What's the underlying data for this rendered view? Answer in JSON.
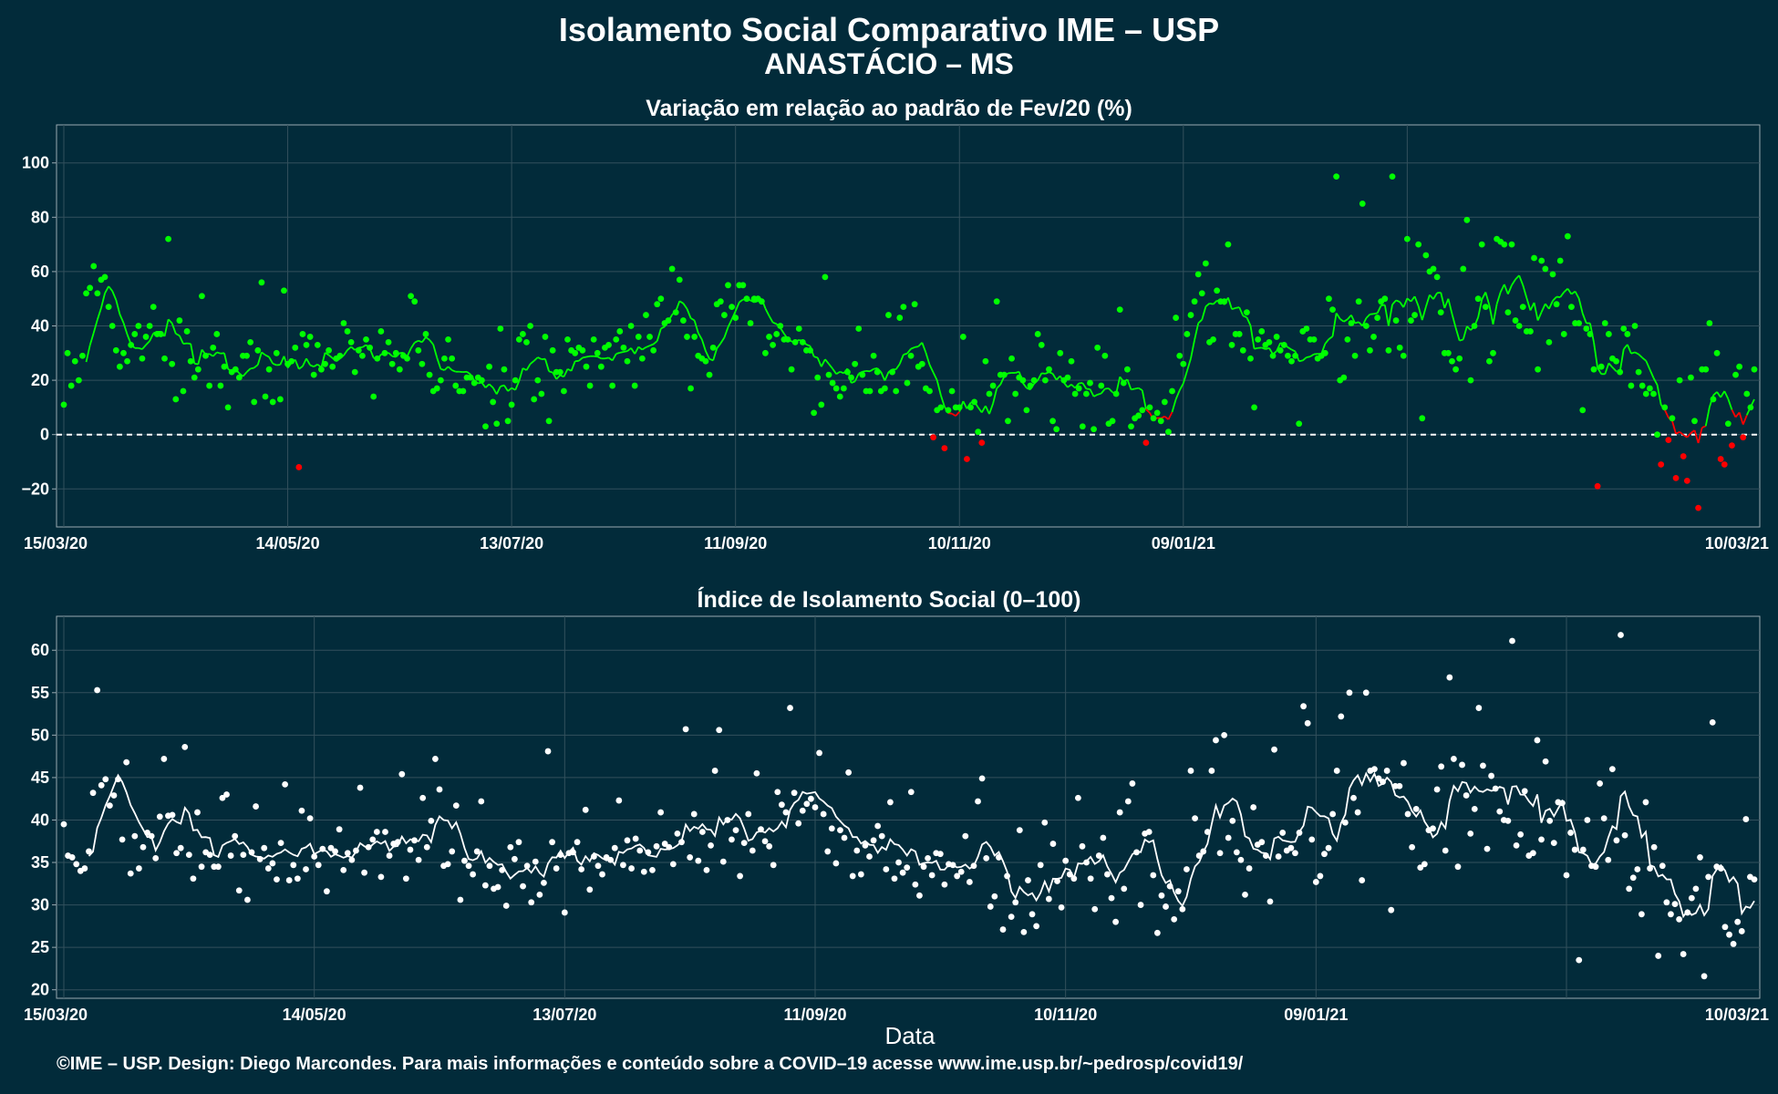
{
  "header": {
    "title": "Isolamento Social Comparativo IME – USP",
    "subtitle": "ANASTÁCIO – MS"
  },
  "footer": "©IME – USP. Design: Diego Marcondes. Para mais informações e conteúdo sobre a COVID–19 acesse www.ime.usp.br/~pedrosp/covid19/",
  "colors": {
    "background": "#022B3A",
    "positive": "#00FF00",
    "negative": "#FF0000",
    "index": "#FFFFFF",
    "grid": "#33505c"
  },
  "chart_data": [
    {
      "type": "scatter",
      "title": "Variação em relação ao padrão de Fev/20 (%)",
      "xlabel": "",
      "ylabel": "",
      "x_start": "15/03/20",
      "x_ticks": [
        "15/03/20",
        "14/05/20",
        "13/07/20",
        "11/09/20",
        "10/11/20",
        "09/01/21",
        "10/03/21"
      ],
      "ylim": [
        -34,
        114
      ],
      "y_ticks": [
        -20,
        0,
        20,
        40,
        60,
        80,
        100
      ],
      "y_tick_labels": [
        "−20",
        "0",
        "20",
        "40",
        "60",
        "80",
        "100"
      ],
      "reference_line": 0,
      "grid": true,
      "values": [
        11,
        30,
        18,
        27,
        20,
        29,
        52,
        54,
        62,
        52,
        57,
        58,
        47,
        40,
        31,
        25,
        30,
        27,
        33,
        37,
        40,
        28,
        36,
        40,
        47,
        37,
        37,
        28,
        72,
        26,
        13,
        42,
        16,
        38,
        27,
        21,
        24,
        51,
        29,
        18,
        32,
        37,
        18,
        25,
        10,
        23,
        24,
        21,
        29,
        29,
        34,
        12,
        31,
        56,
        14,
        24,
        12,
        30,
        13,
        53,
        26,
        27,
        32,
        -12,
        37,
        33,
        36,
        22,
        33,
        24,
        26,
        31,
        25,
        28,
        29,
        41,
        38,
        34,
        23,
        31,
        29,
        35,
        32,
        14,
        28,
        38,
        30,
        34,
        26,
        30,
        24,
        29,
        28,
        51,
        49,
        31,
        26,
        37,
        22,
        16,
        17,
        20,
        28,
        35,
        28,
        18,
        16,
        16,
        21,
        21,
        19,
        21,
        20,
        3,
        25,
        12,
        4,
        39,
        24,
        5,
        11,
        20,
        35,
        37,
        34,
        40,
        13,
        20,
        15,
        36,
        5,
        31,
        23,
        23,
        16,
        35,
        31,
        30,
        32,
        31,
        25,
        18,
        35,
        30,
        25,
        32,
        33,
        18,
        35,
        38,
        32,
        27,
        40,
        18,
        36,
        28,
        44,
        36,
        31,
        48,
        50,
        41,
        42,
        61,
        45,
        57,
        42,
        36,
        17,
        36,
        29,
        28,
        27,
        22,
        32,
        48,
        49,
        44,
        55,
        47,
        43,
        55,
        55,
        50,
        41,
        50,
        50,
        49,
        30,
        36,
        33,
        37,
        40,
        35,
        35,
        24,
        34,
        39,
        34,
        31,
        31,
        8,
        21,
        11,
        58,
        22,
        19,
        17,
        14,
        17,
        23,
        21,
        26,
        39,
        22,
        16,
        16,
        29,
        23,
        16,
        17,
        44,
        23,
        16,
        43,
        47,
        19,
        29,
        48,
        25,
        26,
        17,
        16,
        -1,
        9,
        10,
        -5,
        9,
        16,
        10,
        10,
        36,
        -9,
        10,
        12,
        1,
        -3,
        27,
        15,
        18,
        49,
        22,
        22,
        5,
        28,
        15,
        21,
        20,
        9,
        18,
        20,
        37,
        33,
        20,
        24,
        5,
        2,
        30,
        20,
        21,
        27,
        15,
        17,
        3,
        15,
        19,
        2,
        32,
        18,
        29,
        4,
        5,
        15,
        46,
        19,
        24,
        3,
        6,
        7,
        9,
        -3,
        10,
        6,
        8,
        5,
        12,
        1,
        16,
        43,
        29,
        26,
        37,
        44,
        49,
        59,
        52,
        63,
        34,
        35,
        53,
        49,
        49,
        70,
        33,
        37,
        37,
        31,
        45,
        28,
        10,
        35,
        38,
        33,
        34,
        29,
        36,
        31,
        33,
        29,
        27,
        29,
        4,
        38,
        39,
        35,
        35,
        28,
        29,
        30,
        50,
        46,
        95,
        20,
        21,
        35,
        41,
        29,
        49,
        85,
        40,
        31,
        36,
        43,
        49,
        50,
        31,
        95,
        42,
        32,
        29,
        72,
        42,
        44,
        70,
        6,
        66,
        60,
        61,
        58,
        45,
        30,
        30,
        27,
        24,
        28,
        61,
        79,
        20,
        40,
        50,
        70,
        47,
        27,
        30,
        72,
        71,
        70,
        45,
        70,
        42,
        40,
        47,
        38,
        38,
        65,
        24,
        64,
        61,
        34,
        59,
        48,
        64,
        37,
        73,
        47,
        41,
        41,
        9,
        39,
        37,
        24,
        -19,
        25,
        41,
        37,
        28,
        27,
        23,
        39,
        37,
        18,
        40,
        23,
        18,
        15,
        17,
        15,
        0,
        -11,
        10,
        -2,
        6,
        -16,
        20,
        -8,
        -17,
        21,
        5,
        -27,
        24,
        24,
        41,
        13,
        30,
        -9,
        -11,
        4,
        -4,
        22,
        25,
        -1,
        15,
        10,
        24
      ]
    },
    {
      "type": "scatter",
      "title": "Índice de Isolamento Social (0–100)",
      "xlabel": "Data",
      "ylabel": "",
      "x_start": "15/03/20",
      "x_ticks": [
        "15/03/20",
        "14/05/20",
        "13/07/20",
        "11/09/20",
        "10/11/20",
        "09/01/21",
        "10/03/21"
      ],
      "ylim": [
        19,
        64
      ],
      "y_ticks": [
        20,
        25,
        30,
        35,
        40,
        45,
        50,
        55,
        60
      ],
      "grid": true,
      "values": [
        39.5,
        35.8,
        35.6,
        34.8,
        34.0,
        34.3,
        36.3,
        43.2,
        55.3,
        44.1,
        44.8,
        41.7,
        42.9,
        44.8,
        37.7,
        46.8,
        33.7,
        38.1,
        34.3,
        36.8,
        38.5,
        38.1,
        35.5,
        40.4,
        47.2,
        40.5,
        40.6,
        36.1,
        36.7,
        48.6,
        35.9,
        33.1,
        40.9,
        34.5,
        36.2,
        35.9,
        34.5,
        34.5,
        42.6,
        43.0,
        35.8,
        38.1,
        31.7,
        35.9,
        30.6,
        36.2,
        41.6,
        35.4,
        36.7,
        34.3,
        34.9,
        33.0,
        37.3,
        44.2,
        32.9,
        34.7,
        33.1,
        41.1,
        34.2,
        40.2,
        35.7,
        34.7,
        36.6,
        31.6,
        36.7,
        36.3,
        38.9,
        34.1,
        36.1,
        35.3,
        36.4,
        43.8,
        33.8,
        36.8,
        37.7,
        38.6,
        33.3,
        38.6,
        35.8,
        37.2,
        37.4,
        45.4,
        33.1,
        36.5,
        37.6,
        35.3,
        42.6,
        36.8,
        39.9,
        47.2,
        43.6,
        34.6,
        34.8,
        36.3,
        41.7,
        30.6,
        35.2,
        34.6,
        33.6,
        36.3,
        42.2,
        32.3,
        34.6,
        31.9,
        32.1,
        34.1,
        29.9,
        36.8,
        35.4,
        37.4,
        32.2,
        34.6,
        30.3,
        35.1,
        31.2,
        32.6,
        48.1,
        37.4,
        34.3,
        35.9,
        29.1,
        36.1,
        36.2,
        37.4,
        34.2,
        41.2,
        31.8,
        35.7,
        34.6,
        33.6,
        35.6,
        35.3,
        36.7,
        42.3,
        34.7,
        37.6,
        34.3,
        37.8,
        36.4,
        33.9,
        36.2,
        34.1,
        36.9,
        40.9,
        37.2,
        36.8,
        34.8,
        38.4,
        37.4,
        50.7,
        35.6,
        40.7,
        35.2,
        38.6,
        34.1,
        37.0,
        45.8,
        50.6,
        35.1,
        40.0,
        37.7,
        38.8,
        33.4,
        37.3,
        40.7,
        36.4,
        45.5,
        38.9,
        37.5,
        36.9,
        34.7,
        43.3,
        41.8,
        40.9,
        53.2,
        43.2,
        39.6,
        41.1,
        41.9,
        42.5,
        41.5,
        47.9,
        40.7,
        36.3,
        39.0,
        34.9,
        38.8,
        37.9,
        45.6,
        33.4,
        36.4,
        33.6,
        37.0,
        35.7,
        37.6,
        39.3,
        38.1,
        34.2,
        42.1,
        33.1,
        35.0,
        33.8,
        34.4,
        43.3,
        32.4,
        31.1,
        34.5,
        35.5,
        33.5,
        36.1,
        36.0,
        32.4,
        34.8,
        34.7,
        33.4,
        33.9,
        38.1,
        32.7,
        34.6,
        42.2,
        44.9,
        35.5,
        29.8,
        31.0,
        35.6,
        27.1,
        33.4,
        28.6,
        30.3,
        38.8,
        26.8,
        32.9,
        28.9,
        27.5,
        34.7,
        39.7,
        30.7,
        37.2,
        32.8,
        29.7,
        35.2,
        33.6,
        33.1,
        42.6,
        36.9,
        35.0,
        33.1,
        29.5,
        35.8,
        37.9,
        33.6,
        30.8,
        28.0,
        40.9,
        31.9,
        42.2,
        44.3,
        36.2,
        30.0,
        38.4,
        38.6,
        33.5,
        26.7,
        31.1,
        29.8,
        32.2,
        28.3,
        31.6,
        29.5,
        34.2,
        45.8,
        40.2,
        35.8,
        36.3,
        38.6,
        45.8,
        49.4,
        36.1,
        50.0,
        37.9,
        39.9,
        36.2,
        35.3,
        31.2,
        34.3,
        41.5,
        37.1,
        37.4,
        35.8,
        30.4,
        48.3,
        35.7,
        38.5,
        36.4,
        36.7,
        36.1,
        38.5,
        53.4,
        51.4,
        37.7,
        32.7,
        33.4,
        36.0,
        36.7,
        40.7,
        45.8,
        52.2,
        39.7,
        55.0,
        42.6,
        40.9,
        32.9,
        55.0,
        45.8,
        46.0,
        44.9,
        44.5,
        45.8,
        29.4,
        44.0,
        44.0,
        46.7,
        40.7,
        36.8,
        41.3,
        34.4,
        34.8,
        38.8,
        39.0,
        43.6,
        46.3,
        36.4,
        56.8,
        47.2,
        34.5,
        46.5,
        42.9,
        38.4,
        41.3,
        53.2,
        46.4,
        36.6,
        45.2,
        43.7,
        41.0,
        40.0,
        39.9,
        61.1,
        37.0,
        38.3,
        43.4,
        35.8,
        36.1,
        49.4,
        37.7,
        46.9,
        39.9,
        37.3,
        42.1,
        42.0,
        33.5,
        38.5,
        36.5,
        23.5,
        36.5,
        40.0,
        34.6,
        34.5,
        44.3,
        40.2,
        35.3,
        46.0,
        37.6,
        61.8,
        38.2,
        31.9,
        33.2,
        34.2,
        28.9,
        42.1,
        34.3,
        36.8,
        24.0,
        34.6,
        30.3,
        28.9,
        30.1,
        28.3,
        24.2,
        29.1,
        30.8,
        31.9,
        35.6,
        21.6,
        33.3,
        51.5,
        34.5,
        34.3,
        27.4,
        26.5,
        25.4,
        28.0,
        26.9,
        40.1,
        33.3,
        33.0
      ]
    }
  ]
}
